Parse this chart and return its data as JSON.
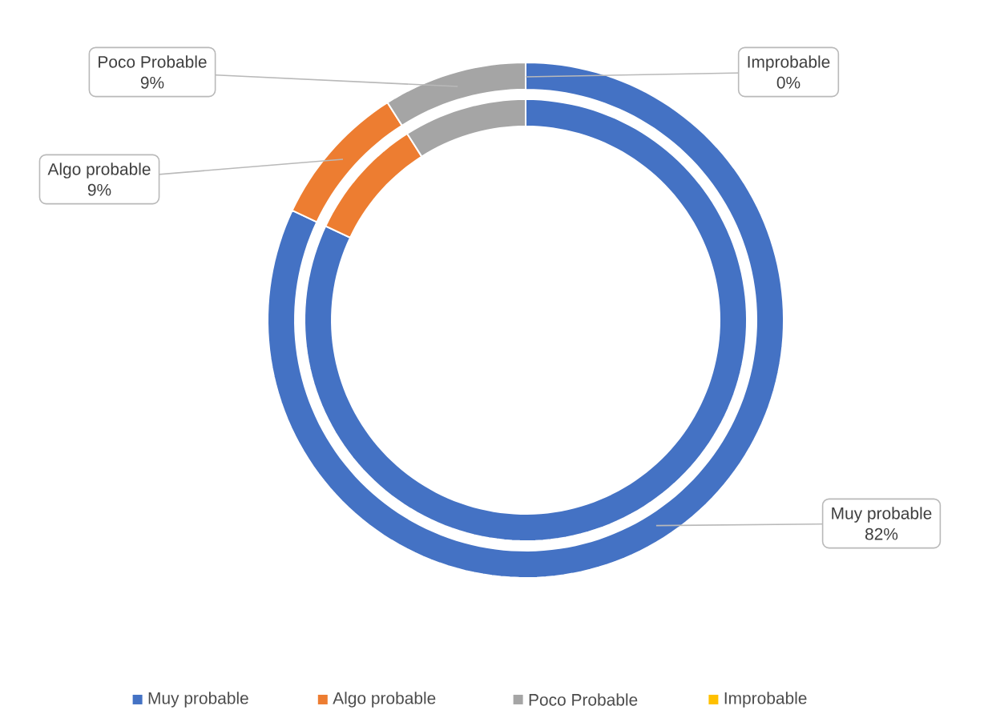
{
  "chart_data": {
    "type": "donut",
    "categories": [
      "Muy probable",
      "Algo probable",
      "Poco Probable",
      "Improbable"
    ],
    "colors": [
      "#4472c4",
      "#ed7d31",
      "#a5a5a5",
      "#ffc000"
    ],
    "series": [
      {
        "values": [
          82,
          9,
          9,
          0
        ]
      },
      {
        "values": [
          82,
          9,
          9,
          0
        ]
      }
    ],
    "value_labels": [
      "82%",
      "9%",
      "9%",
      "0%"
    ],
    "legend": "bottom"
  }
}
